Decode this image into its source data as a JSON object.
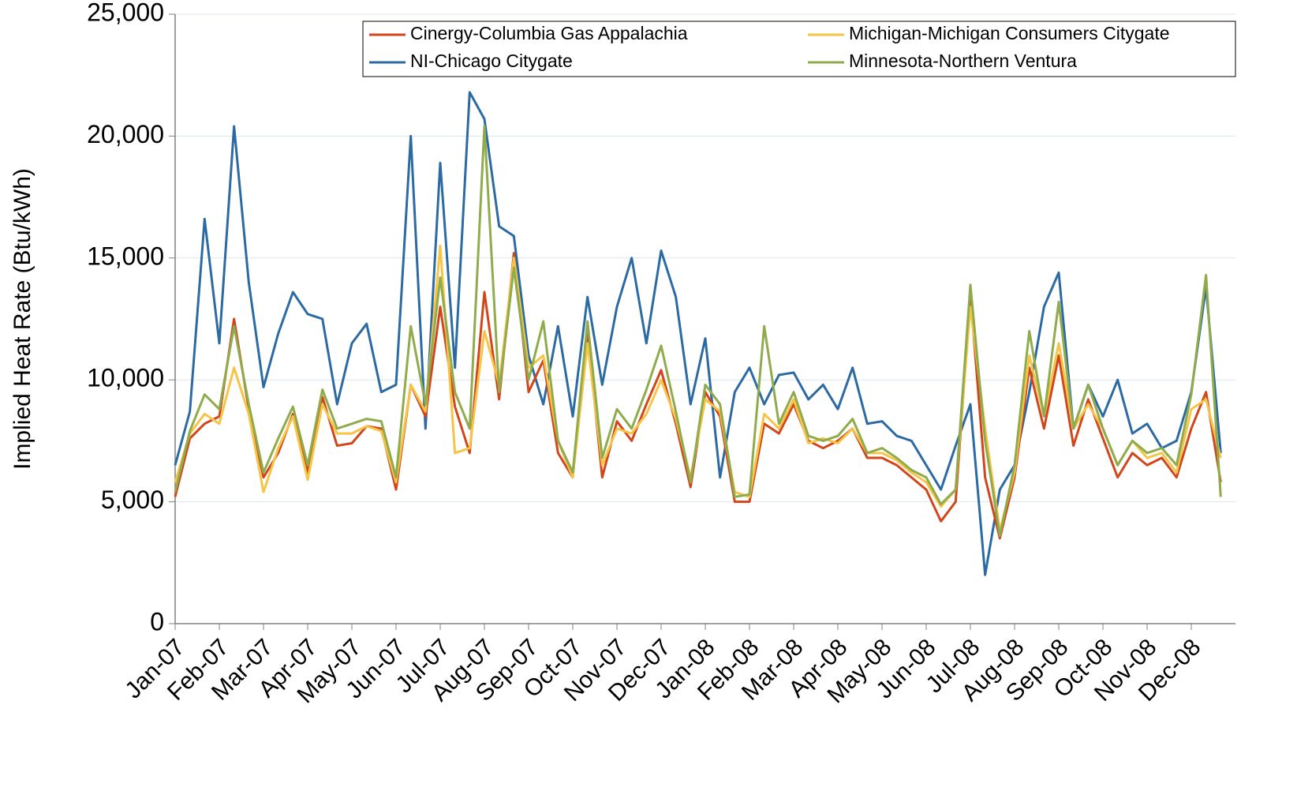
{
  "chart_data": {
    "type": "line",
    "y_label": "Implied Heat Rate (Btu/kWh)",
    "categories": [
      "Jan-07",
      null,
      null,
      "Feb-07",
      null,
      null,
      "Mar-07",
      null,
      null,
      "Apr-07",
      null,
      null,
      "May-07",
      null,
      null,
      "Jun-07",
      null,
      null,
      "Jul-07",
      null,
      null,
      "Aug-07",
      null,
      null,
      "Sep-07",
      null,
      null,
      "Oct-07",
      null,
      null,
      "Nov-07",
      null,
      null,
      "Dec-07",
      null,
      null,
      "Jan-08",
      null,
      null,
      "Feb-08",
      null,
      null,
      "Mar-08",
      null,
      null,
      "Apr-08",
      null,
      null,
      "May-08",
      null,
      null,
      "Jun-08",
      null,
      null,
      "Jul-08",
      null,
      null,
      "Aug-08",
      null,
      null,
      "Sep-08",
      null,
      null,
      "Oct-08",
      null,
      null,
      "Nov-08",
      null,
      null,
      "Dec-08",
      null,
      null
    ],
    "series": [
      {
        "name": "Cinergy-Columbia Gas Appalachia",
        "color": "#d2461c",
        "values": [
          5200,
          7600,
          8200,
          8500,
          12500,
          8800,
          6000,
          7000,
          8600,
          6200,
          9300,
          7300,
          7400,
          8100,
          8000,
          5500,
          9800,
          8500,
          13000,
          8900,
          7000,
          13600,
          9200,
          15200,
          9500,
          10800,
          7000,
          6000,
          12000,
          6000,
          8300,
          7500,
          9000,
          10400,
          8200,
          5600,
          9500,
          8500,
          5000,
          5000,
          8200,
          7800,
          9000,
          7500,
          7200,
          7500,
          8000,
          6800,
          6800,
          6500,
          6000,
          5500,
          4200,
          5000,
          13500,
          6000,
          3500,
          6000,
          10500,
          8000,
          11000,
          7300,
          9200,
          7600,
          6000,
          7000,
          6500,
          6800,
          6000,
          8000,
          9500,
          5800
        ]
      },
      {
        "name": "NI-Chicago Citygate",
        "color": "#2b6aa2",
        "values": [
          6500,
          8700,
          16600,
          11500,
          20400,
          14000,
          9700,
          11900,
          13600,
          12700,
          12500,
          9000,
          11500,
          12300,
          9500,
          9800,
          20000,
          8000,
          18900,
          10500,
          21800,
          20700,
          16300,
          15900,
          11000,
          9000,
          12200,
          8500,
          13400,
          9800,
          13000,
          15000,
          11500,
          15300,
          13400,
          9000,
          11700,
          6000,
          9500,
          10500,
          9000,
          10200,
          10300,
          9200,
          9800,
          8800,
          10500,
          8200,
          8300,
          7700,
          7500,
          6500,
          5500,
          7300,
          9000,
          2000,
          5500,
          6500,
          9500,
          13000,
          14400,
          8000,
          9800,
          8500,
          10000,
          7800,
          8200,
          7200,
          7500,
          9500,
          13800,
          7000
        ]
      },
      {
        "name": "Michigan-Michigan Consumers Citygate",
        "color": "#f6c547",
        "values": [
          5800,
          7800,
          8600,
          8200,
          10500,
          8600,
          5400,
          7200,
          8500,
          5900,
          9000,
          7800,
          7800,
          8100,
          7900,
          5800,
          9800,
          8700,
          15500,
          7000,
          7200,
          12000,
          9800,
          15000,
          10500,
          11000,
          7500,
          6000,
          11500,
          6500,
          8000,
          7800,
          8600,
          10000,
          8400,
          6000,
          9200,
          8700,
          5400,
          5200,
          8600,
          8000,
          9200,
          7400,
          7600,
          7400,
          8000,
          7000,
          7000,
          6700,
          6200,
          5800,
          4800,
          5500,
          13000,
          8000,
          3800,
          6200,
          11000,
          8500,
          11500,
          8000,
          9000,
          8000,
          6500,
          7500,
          6800,
          7000,
          6200,
          8800,
          9200,
          6800
        ]
      },
      {
        "name": "Minnesota-Northern Ventura",
        "color": "#8fab4c",
        "values": [
          5400,
          7900,
          9400,
          8800,
          12200,
          9000,
          6200,
          7600,
          8900,
          6500,
          9600,
          8000,
          8200,
          8400,
          8300,
          6000,
          12200,
          9000,
          14200,
          9500,
          8000,
          20400,
          9500,
          14600,
          10000,
          12400,
          7500,
          6200,
          12400,
          6800,
          8800,
          8000,
          9600,
          11400,
          8700,
          5800,
          9800,
          9000,
          5200,
          5300,
          12200,
          8200,
          9500,
          7700,
          7500,
          7700,
          8400,
          7000,
          7200,
          6800,
          6300,
          6000,
          4900,
          5500,
          13900,
          7500,
          3600,
          6500,
          12000,
          8500,
          13200,
          8000,
          9800,
          8000,
          6500,
          7500,
          7000,
          7200,
          6500,
          9400,
          14300,
          5200
        ]
      }
    ],
    "ylim": [
      0,
      25000
    ],
    "yticks": [
      {
        "value": 0,
        "label": "0"
      },
      {
        "value": 5000,
        "label": "5,000"
      },
      {
        "value": 10000,
        "label": "10,000"
      },
      {
        "value": 15000,
        "label": "15,000"
      },
      {
        "value": 20000,
        "label": "20,000"
      },
      {
        "value": 25000,
        "label": "25,000"
      }
    ],
    "grid": true,
    "legend": "top-right"
  }
}
